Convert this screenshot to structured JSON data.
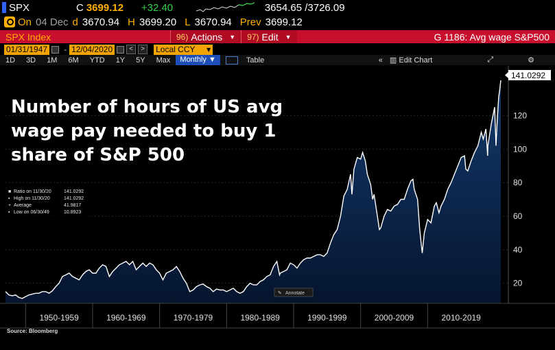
{
  "quote": {
    "ticker": "SPX",
    "c_label": "C",
    "last": "3699.12",
    "change": "+32.40",
    "range": "3654.65 /3726.09",
    "on_label": "On",
    "date": "04 Dec",
    "d_label": "d",
    "open": "3670.94",
    "h_label": "H",
    "high": "3699.20",
    "l_label": "L",
    "low": "3670.94",
    "prev_label": "Prev",
    "prev": "3699.12"
  },
  "commands": {
    "index_title": "SPX Index",
    "actions_num": "96)",
    "actions_label": "Actions",
    "edit_num": "97)",
    "edit_label": "Edit",
    "graph_title": "G 1186: Avg wage S&P500"
  },
  "dates": {
    "start": "01/31/1947",
    "end": "12/04/2020",
    "currency": "Local CCY"
  },
  "toolbar": {
    "periods": [
      "1D",
      "3D",
      "1M",
      "6M",
      "YTD",
      "1Y",
      "5Y",
      "Max"
    ],
    "frequency": "Monthly",
    "table_label": "Table",
    "edit_chart_label": "Edit Chart"
  },
  "colors": {
    "accent_orange": "#ffb000",
    "command_red": "#c8102e",
    "positive_green": "#35d04a",
    "line_white": "#ffffff",
    "area_navy": "#0b1f3f"
  },
  "chart_data": {
    "type": "area",
    "title": "Number of hours of US avg wage pay needed to buy 1 share of S&P 500",
    "source": "Source: Bloomberg",
    "annotate_label": "Annotate",
    "last_value_label": "141.0292",
    "ylim": [
      8,
      148
    ],
    "yticks": [
      20,
      40,
      60,
      80,
      100,
      120
    ],
    "xlim": [
      1947.0,
      2020.92
    ],
    "xtick_labels": [
      "1950-1959",
      "1960-1969",
      "1970-1979",
      "1980-1989",
      "1990-1999",
      "2000-2009",
      "2010-2019"
    ],
    "legend": [
      {
        "label": "Ratio on 11/30/20",
        "value": "141.0292"
      },
      {
        "label": "High on 11/30/20",
        "value": "141.0292"
      },
      {
        "label": "Average",
        "value": "41.9817"
      },
      {
        "label": "Low on 06/30/49",
        "value": "10.8923"
      }
    ],
    "series": [
      {
        "values": [
          [
            1947.0,
            15
          ],
          [
            1947.5,
            13
          ],
          [
            1948.0,
            12.5
          ],
          [
            1948.5,
            13
          ],
          [
            1949.0,
            11.5
          ],
          [
            1949.5,
            10.9
          ],
          [
            1950.0,
            12
          ],
          [
            1950.5,
            13
          ],
          [
            1951.0,
            13.5
          ],
          [
            1951.5,
            14
          ],
          [
            1952.0,
            14
          ],
          [
            1952.5,
            15
          ],
          [
            1953.0,
            15
          ],
          [
            1953.5,
            14
          ],
          [
            1954.0,
            15.5
          ],
          [
            1954.5,
            18
          ],
          [
            1955.0,
            20
          ],
          [
            1955.5,
            24
          ],
          [
            1956.0,
            25
          ],
          [
            1956.5,
            26
          ],
          [
            1957.0,
            24
          ],
          [
            1957.5,
            23
          ],
          [
            1958.0,
            22
          ],
          [
            1958.5,
            25
          ],
          [
            1959.0,
            27
          ],
          [
            1959.5,
            28
          ],
          [
            1960.0,
            26
          ],
          [
            1960.5,
            26
          ],
          [
            1961.0,
            29
          ],
          [
            1961.5,
            31
          ],
          [
            1962.0,
            30
          ],
          [
            1962.5,
            24
          ],
          [
            1963.0,
            27
          ],
          [
            1963.5,
            29
          ],
          [
            1964.0,
            31
          ],
          [
            1964.5,
            32
          ],
          [
            1965.0,
            33
          ],
          [
            1965.5,
            31
          ],
          [
            1966.0,
            33
          ],
          [
            1966.5,
            28
          ],
          [
            1967.0,
            30
          ],
          [
            1967.5,
            32
          ],
          [
            1968.0,
            30
          ],
          [
            1968.5,
            32
          ],
          [
            1969.0,
            31
          ],
          [
            1969.5,
            28
          ],
          [
            1970.0,
            26
          ],
          [
            1970.5,
            22
          ],
          [
            1971.0,
            26
          ],
          [
            1971.5,
            27
          ],
          [
            1972.0,
            28
          ],
          [
            1972.5,
            30
          ],
          [
            1973.0,
            27
          ],
          [
            1973.5,
            23
          ],
          [
            1974.0,
            20
          ],
          [
            1974.5,
            15
          ],
          [
            1975.0,
            16
          ],
          [
            1975.5,
            18
          ],
          [
            1976.0,
            19
          ],
          [
            1976.5,
            19.5
          ],
          [
            1977.0,
            18
          ],
          [
            1977.5,
            17
          ],
          [
            1978.0,
            15
          ],
          [
            1978.5,
            16.5
          ],
          [
            1979.0,
            16
          ],
          [
            1979.5,
            16
          ],
          [
            1980.0,
            15
          ],
          [
            1980.5,
            16
          ],
          [
            1981.0,
            17
          ],
          [
            1981.5,
            15
          ],
          [
            1982.0,
            14
          ],
          [
            1982.5,
            15
          ],
          [
            1983.0,
            18
          ],
          [
            1983.5,
            20
          ],
          [
            1984.0,
            19
          ],
          [
            1984.5,
            19
          ],
          [
            1985.0,
            21
          ],
          [
            1985.5,
            22
          ],
          [
            1986.0,
            24
          ],
          [
            1986.5,
            25
          ],
          [
            1987.0,
            30
          ],
          [
            1987.5,
            33
          ],
          [
            1987.9,
            25
          ],
          [
            1988.0,
            26
          ],
          [
            1988.5,
            27
          ],
          [
            1989.0,
            28
          ],
          [
            1989.5,
            32
          ],
          [
            1990.0,
            31
          ],
          [
            1990.5,
            29
          ],
          [
            1991.0,
            32
          ],
          [
            1991.5,
            34
          ],
          [
            1992.0,
            35
          ],
          [
            1992.5,
            35
          ],
          [
            1993.0,
            36
          ],
          [
            1993.5,
            37
          ],
          [
            1994.0,
            37
          ],
          [
            1994.5,
            36
          ],
          [
            1995.0,
            38
          ],
          [
            1995.5,
            44
          ],
          [
            1996.0,
            49
          ],
          [
            1996.5,
            52
          ],
          [
            1997.0,
            60
          ],
          [
            1997.5,
            72
          ],
          [
            1998.0,
            76
          ],
          [
            1998.5,
            85
          ],
          [
            1998.7,
            73
          ],
          [
            1999.0,
            88
          ],
          [
            1999.5,
            95
          ],
          [
            2000.0,
            94
          ],
          [
            2000.3,
            98
          ],
          [
            2000.7,
            93
          ],
          [
            2001.0,
            85
          ],
          [
            2001.5,
            79
          ],
          [
            2001.8,
            70
          ],
          [
            2002.0,
            73
          ],
          [
            2002.5,
            60
          ],
          [
            2002.8,
            52
          ],
          [
            2003.0,
            53
          ],
          [
            2003.5,
            60
          ],
          [
            2004.0,
            64
          ],
          [
            2004.5,
            63
          ],
          [
            2005.0,
            66
          ],
          [
            2005.5,
            67
          ],
          [
            2006.0,
            70
          ],
          [
            2006.5,
            70
          ],
          [
            2007.0,
            76
          ],
          [
            2007.5,
            81
          ],
          [
            2007.8,
            82
          ],
          [
            2008.0,
            76
          ],
          [
            2008.5,
            70
          ],
          [
            2008.8,
            53
          ],
          [
            2009.0,
            45
          ],
          [
            2009.2,
            38
          ],
          [
            2009.5,
            50
          ],
          [
            2010.0,
            58
          ],
          [
            2010.5,
            56
          ],
          [
            2011.0,
            66
          ],
          [
            2011.3,
            68
          ],
          [
            2011.7,
            62
          ],
          [
            2012.0,
            66
          ],
          [
            2012.5,
            70
          ],
          [
            2013.0,
            76
          ],
          [
            2013.5,
            80
          ],
          [
            2014.0,
            85
          ],
          [
            2014.5,
            90
          ],
          [
            2015.0,
            95
          ],
          [
            2015.5,
            96
          ],
          [
            2015.7,
            88
          ],
          [
            2016.0,
            87
          ],
          [
            2016.5,
            93
          ],
          [
            2017.0,
            98
          ],
          [
            2017.5,
            102
          ],
          [
            2018.0,
            110
          ],
          [
            2018.3,
            106
          ],
          [
            2018.7,
            112
          ],
          [
            2018.95,
            96
          ],
          [
            2019.0,
            102
          ],
          [
            2019.5,
            115
          ],
          [
            2020.0,
            125
          ],
          [
            2020.2,
            102
          ],
          [
            2020.4,
            118
          ],
          [
            2020.6,
            131
          ],
          [
            2020.75,
            135
          ],
          [
            2020.92,
            141.03
          ]
        ]
      }
    ]
  }
}
